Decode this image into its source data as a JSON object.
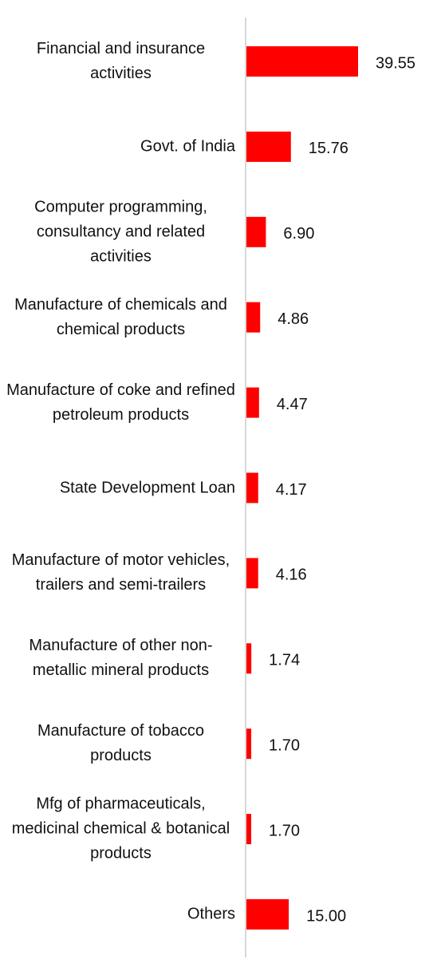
{
  "chart_data": {
    "type": "hbar",
    "categories": [
      "Financial and insurance activities",
      "Govt. of India",
      "Computer programming, consultancy and related activities",
      "Manufacture of chemicals and chemical products",
      "Manufacture of coke and refined petroleum products",
      "State Development Loan",
      "Manufacture of motor vehicles, trailers and semi-trailers",
      "Manufacture of other non-metallic mineral products",
      "Manufacture of tobacco products",
      "Mfg of pharmaceuticals, medicinal chemical & botanical products",
      "Others"
    ],
    "values": [
      39.55,
      15.76,
      6.9,
      4.86,
      4.47,
      4.17,
      4.16,
      1.74,
      1.7,
      1.7,
      15.0
    ],
    "value_labels": [
      "39.55",
      "15.76",
      "6.90",
      "4.86",
      "4.47",
      "4.17",
      "4.16",
      "1.74",
      "1.70",
      "1.70",
      "15.00"
    ],
    "color": "#ff0000"
  }
}
